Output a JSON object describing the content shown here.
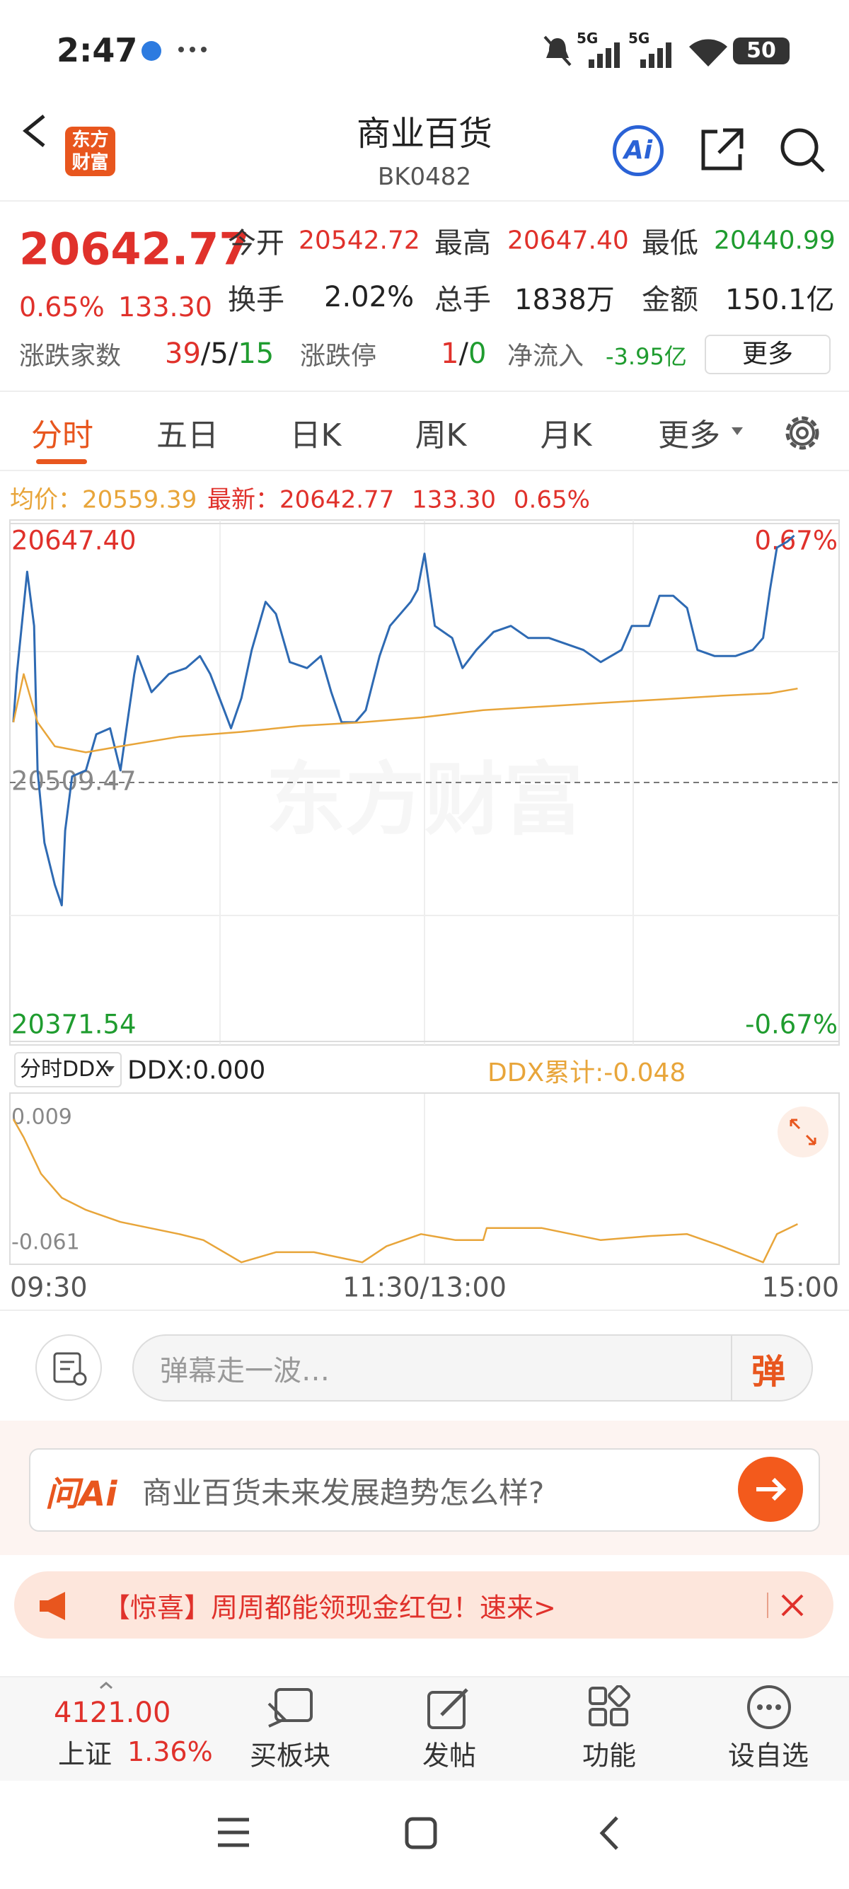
{
  "status_bar": {
    "time": "2:47",
    "network_1": "5G",
    "network_2": "5G",
    "battery": "50"
  },
  "header": {
    "logo": [
      "东方",
      "财富"
    ],
    "title": "商业百货",
    "code": "BK0482",
    "ai": "Ai"
  },
  "quote": {
    "price": "20642.77",
    "change_pct": "0.65%",
    "change": "133.30",
    "fields": [
      {
        "label": "今开",
        "value": "20542.72"
      },
      {
        "label": "最高",
        "value": "20647.40"
      },
      {
        "label": "最低",
        "value": "20440.99"
      },
      {
        "label": "换手",
        "value": "2.02%"
      },
      {
        "label": "总手",
        "value": "1838万"
      },
      {
        "label": "金额",
        "value": "150.1亿"
      }
    ],
    "breadth": {
      "label": "涨跌家数",
      "up": "39",
      "sep": "/",
      "flat": "5",
      "down": "15"
    },
    "limit": {
      "label": "涨跌停",
      "up": "1",
      "sep": "/",
      "down": "0"
    },
    "net_inflow": {
      "label": "净流入",
      "value": "-3.95亿"
    },
    "more": "更多"
  },
  "tabs": [
    "分时",
    "五日",
    "日K",
    "周K",
    "月K",
    "更多"
  ],
  "info": {
    "avg_label": "均价：",
    "avg": "20559.39",
    "last_label": "最新：",
    "last": "20642.77",
    "change": "133.30",
    "change_pct": "0.65%"
  },
  "watermark": "东方财富",
  "ddx": {
    "selector": "分时DDX",
    "value": "DDX:0.000",
    "total": "DDX累计:-0.048"
  },
  "comment": {
    "placeholder": "弹幕走一波…",
    "button": "弹"
  },
  "ask": {
    "logo": "问Ai",
    "question": "商业百货未来发展趋势怎么样?"
  },
  "banner": "【惊喜】周周都能领现金红包！速来>",
  "bottom_nav": {
    "index": {
      "value": "4121.00",
      "name": "上证",
      "change_pct": "1.36%"
    },
    "items": [
      "买板块",
      "发帖",
      "功能",
      "设自选"
    ]
  },
  "chart_data": [
    {
      "type": "line",
      "xlim": [
        0,
        240
      ],
      "ylim": [
        20371.54,
        20647.4
      ],
      "yticks": [
        {
          "value": 20647.4,
          "label": "20647.40"
        },
        20509.47,
        20371.54
      ],
      "y2lim": [
        -0.67,
        0.67
      ],
      "y2ticks": [
        {
          "value": 0.67,
          "label": "0.67%"
        },
        {
          "value": -0.67,
          "label": "-0.67%"
        }
      ],
      "grid": true,
      "series": [
        {
          "color": "#2e6ab3",
          "x": [
            1,
            2,
            5,
            7,
            8,
            10,
            13,
            15,
            16,
            18,
            22,
            25,
            29,
            32,
            34,
            36,
            37,
            41,
            46,
            51,
            55,
            58,
            62,
            64,
            67,
            70,
            74,
            77,
            81,
            86,
            90,
            93,
            96,
            100,
            103,
            107,
            110,
            116,
            118,
            120,
            123,
            128,
            131,
            135,
            140,
            145,
            150,
            156,
            161,
            166,
            171,
            177,
            180,
            185,
            188,
            192,
            196,
            199,
            204,
            210,
            215,
            218,
            220,
            222,
            225,
            227
          ],
          "values": [
            20541.55,
            20567.21,
            20621.74,
            20592.87,
            20515.9,
            20477.4,
            20454.95,
            20444.04,
            20483.82,
            20512.7,
            20515.9,
            20535.14,
            20538.34,
            20515.9,
            20541.55,
            20567.21,
            20576.83,
            20557.59,
            20567.21,
            20570.42,
            20576.83,
            20567.21,
            20547.97,
            20538.34,
            20554.38,
            20580.04,
            20605.7,
            20599.29,
            20573.63,
            20570.42,
            20576.83,
            20557.59,
            20541.55,
            20541.55,
            20547.97,
            20576.83,
            20592.87,
            20605.7,
            20612.12,
            20631.36,
            20592.87,
            20586.46,
            20570.42,
            20580.04,
            20589.66,
            20592.87,
            20586.46,
            20586.46,
            20583.25,
            20580.04,
            20573.63,
            20580.04,
            20592.87,
            20592.87,
            20608.91,
            20608.91,
            20602.49,
            20580.04,
            20576.83,
            20576.83,
            20580.04,
            20586.46,
            20612.12,
            20634.57,
            20637.78,
            20640.98
          ]
        },
        {
          "color": "#e8a53a",
          "x": [
            1,
            4,
            8,
            13,
            22,
            32,
            49,
            67,
            84,
            102,
            119,
            137,
            154,
            171,
            189,
            206,
            220,
            228
          ],
          "values": [
            20541.55,
            20567.21,
            20541.55,
            20528.72,
            20525.52,
            20528.72,
            20533.85,
            20536.42,
            20539.63,
            20541.55,
            20544.12,
            20547.97,
            20549.89,
            20551.82,
            20553.74,
            20555.67,
            20556.95,
            20559.51
          ]
        }
      ]
    },
    {
      "type": "line",
      "xlim": [
        0,
        240
      ],
      "xticks": [
        {
          "value": 0,
          "label": "09:30"
        },
        {
          "value": 120,
          "label": "11:30/13:00"
        },
        {
          "value": 240,
          "label": "15:00"
        }
      ],
      "ylim": [
        -0.068,
        0.017
      ],
      "yticks": [
        0.009,
        -0.061
      ],
      "grid": false,
      "series": [
        {
          "color": "#e8a53a",
          "x": [
            1,
            4,
            9,
            15,
            22,
            32,
            49,
            56,
            67,
            77,
            88,
            102,
            109,
            119,
            129,
            137,
            138,
            154,
            171,
            185,
            196,
            206,
            218,
            222,
            228
          ],
          "values": [
            0.004,
            -0.005,
            -0.023,
            -0.035,
            -0.041,
            -0.047,
            -0.053,
            -0.056,
            -0.067,
            -0.062,
            -0.062,
            -0.067,
            -0.059,
            -0.053,
            -0.056,
            -0.056,
            -0.05,
            -0.05,
            -0.056,
            -0.054,
            -0.053,
            -0.059,
            -0.067,
            -0.053,
            -0.048
          ]
        }
      ]
    }
  ]
}
